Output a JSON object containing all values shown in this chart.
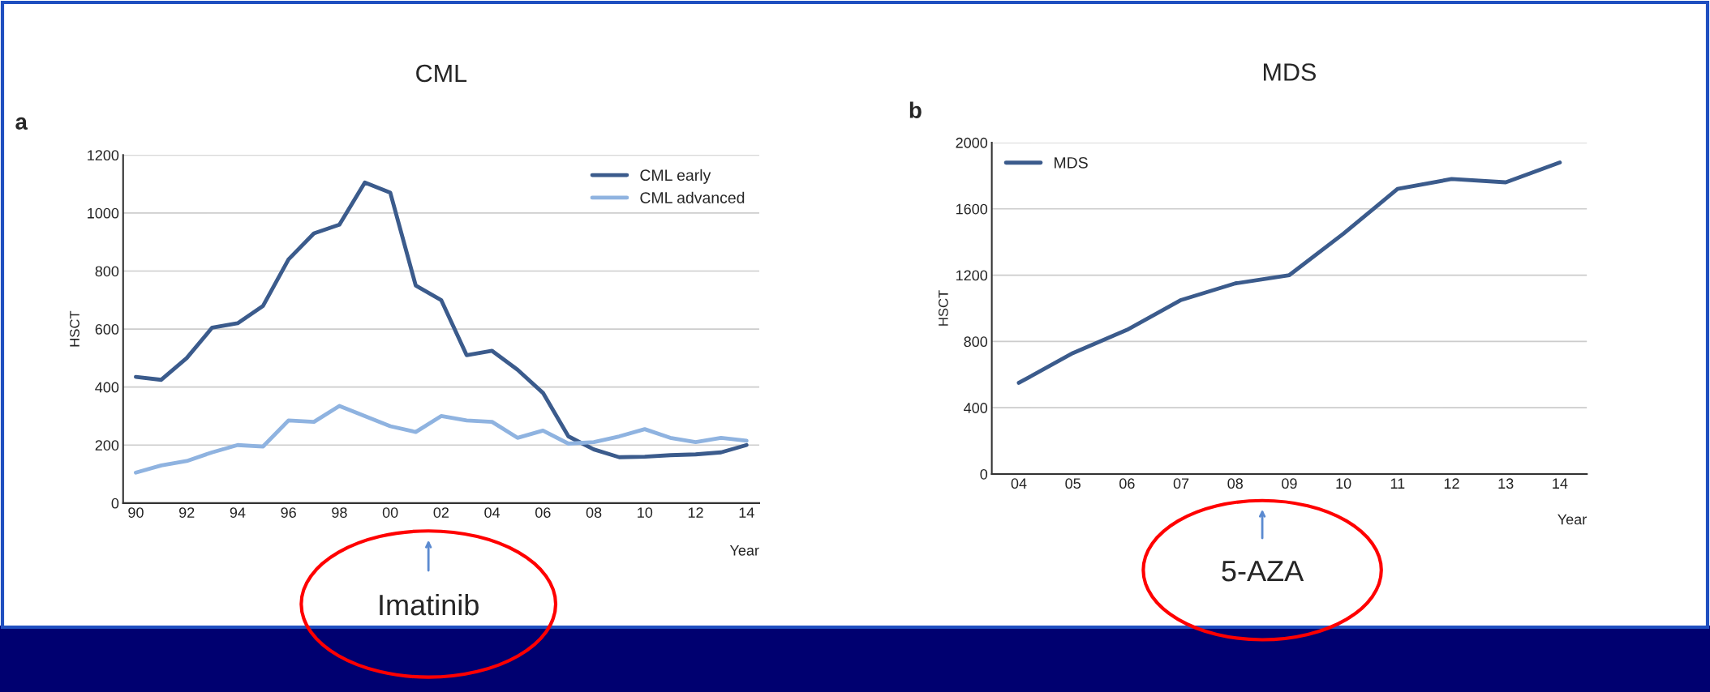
{
  "chart_data": [
    {
      "type": "line",
      "title": "CML",
      "xlabel": "Year",
      "ylabel": "HSCT",
      "categories": [
        "90",
        null,
        "92",
        null,
        "94",
        null,
        "96",
        null,
        "98",
        null,
        "00",
        null,
        "02",
        null,
        "04",
        null,
        "06",
        null,
        "08",
        null,
        "10",
        null,
        "12",
        null,
        "14"
      ],
      "series": [
        {
          "name": "CML early",
          "color": "#3b5b8c",
          "values": [
            435,
            425,
            500,
            605,
            620,
            680,
            840,
            930,
            960,
            1105,
            1070,
            750,
            700,
            510,
            525,
            460,
            380,
            230,
            185,
            158,
            160,
            165,
            168,
            175,
            200
          ]
        },
        {
          "name": "CML advanced",
          "color": "#8fb3e0",
          "values": [
            105,
            130,
            145,
            175,
            200,
            195,
            285,
            280,
            335,
            300,
            265,
            245,
            300,
            285,
            280,
            225,
            250,
            205,
            210,
            230,
            255,
            225,
            210,
            225,
            215
          ]
        }
      ],
      "ylim": [
        0,
        1200
      ],
      "yticks": [
        0,
        200,
        400,
        600,
        800,
        1000,
        1200
      ],
      "grid": "y",
      "legend": "top right",
      "line_style": "solid",
      "annotations": [
        "a",
        "Imatinib"
      ]
    },
    {
      "type": "line",
      "title": "MDS",
      "xlabel": "Year",
      "ylabel": "HSCT",
      "categories": [
        "04",
        "05",
        "06",
        "07",
        "08",
        "09",
        "10",
        "11",
        "12",
        "13",
        "14"
      ],
      "series": [
        {
          "name": "MDS",
          "color": "#3b5b8c",
          "values": [
            550,
            730,
            870,
            1050,
            1150,
            1200,
            1450,
            1720,
            1780,
            1760,
            1880
          ]
        }
      ],
      "ylim": [
        0,
        2000
      ],
      "yticks": [
        0,
        400,
        800,
        1200,
        1600,
        2000
      ],
      "grid": "y",
      "legend": "top left",
      "line_style": "solid",
      "annotations": [
        "b",
        "5-AZA"
      ]
    }
  ]
}
